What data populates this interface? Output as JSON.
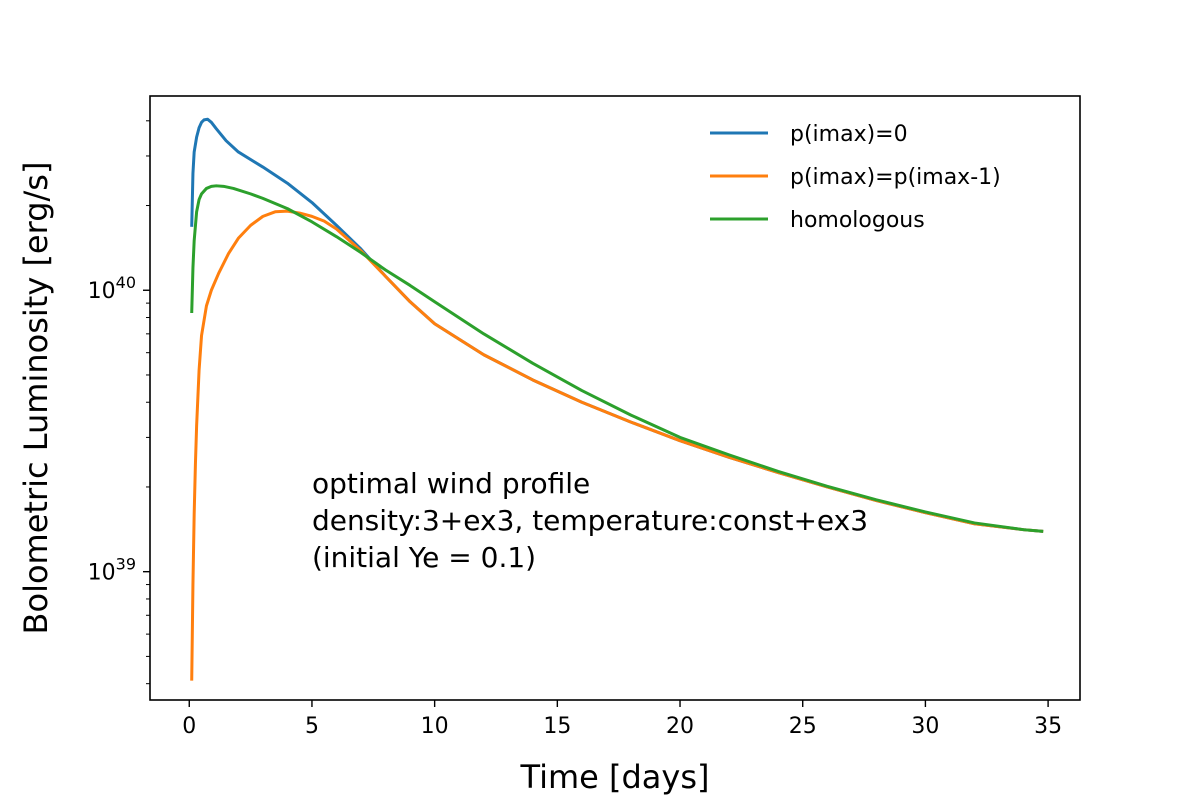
{
  "chart_data": {
    "type": "line",
    "title": "",
    "xlabel": "Time [days]",
    "ylabel": "Bolometric Luminosity [erg/s]",
    "xlim": [
      -1.6,
      36.3
    ],
    "ylim": [
      3.5e+38,
      4.9e+40
    ],
    "yscale": "log",
    "grid": false,
    "legend_position": "top-right",
    "x_ticks": [
      0,
      5,
      10,
      15,
      20,
      25,
      30,
      35
    ],
    "x_tick_labels": [
      "0",
      "5",
      "10",
      "15",
      "20",
      "25",
      "30",
      "35"
    ],
    "y_major_ticks": [
      {
        "value": 1e+39,
        "base": "10",
        "exp": "39"
      },
      {
        "value": 1e+40,
        "base": "10",
        "exp": "40"
      }
    ],
    "annotation": {
      "x": 5,
      "y": 1.9e+39,
      "lines": [
        "optimal wind profile",
        "density:3+ex3, temperature:const+ex3",
        "(initial Ye = 0.1)"
      ]
    },
    "series": [
      {
        "name": "p(imax)=0",
        "color": "#1f77b4",
        "x": [
          0.1,
          0.15,
          0.2,
          0.3,
          0.4,
          0.5,
          0.6,
          0.75,
          0.9,
          1.1,
          1.5,
          2,
          3,
          4,
          5,
          6,
          7,
          8,
          9,
          10,
          12,
          14,
          16,
          18,
          20,
          22,
          24,
          26,
          28,
          30,
          32,
          34,
          34.8
        ],
        "values": [
          1.68e+40,
          2.6e+40,
          3.1e+40,
          3.5e+40,
          3.78e+40,
          3.95e+40,
          4.03e+40,
          4.05e+40,
          3.95e+40,
          3.75e+40,
          3.4e+40,
          3.1e+40,
          2.74e+40,
          2.4e+40,
          2.05e+40,
          1.7e+40,
          1.4e+40,
          1.12e+40,
          9.1e+39,
          7.6e+39,
          5.9e+39,
          4.8e+39,
          4e+39,
          3.4e+39,
          2.92e+39,
          2.55e+39,
          2.25e+39,
          2e+39,
          1.79e+39,
          1.62e+39,
          1.48e+39,
          1.41e+39,
          1.39e+39
        ]
      },
      {
        "name": "p(imax)=p(imax-1)",
        "color": "#ff7f0e",
        "x": [
          0.1,
          0.15,
          0.2,
          0.25,
          0.3,
          0.4,
          0.5,
          0.7,
          0.9,
          1.2,
          1.6,
          2,
          2.5,
          3,
          3.5,
          4,
          4.5,
          5,
          5.5,
          6,
          7,
          8,
          9,
          10,
          12,
          14,
          16,
          18,
          20,
          22,
          24,
          26,
          28,
          30,
          32,
          34,
          34.8
        ],
        "values": [
          4.1e+38,
          9e+38,
          1.6e+39,
          2.4e+39,
          3.3e+39,
          5.2e+39,
          6.9e+39,
          8.8e+39,
          1e+40,
          1.15e+40,
          1.35e+40,
          1.53e+40,
          1.7e+40,
          1.83e+40,
          1.9e+40,
          1.91e+40,
          1.88e+40,
          1.83e+40,
          1.76e+40,
          1.65e+40,
          1.38e+40,
          1.12e+40,
          9.1e+39,
          7.6e+39,
          5.9e+39,
          4.8e+39,
          4e+39,
          3.4e+39,
          2.92e+39,
          2.55e+39,
          2.25e+39,
          2e+39,
          1.79e+39,
          1.62e+39,
          1.48e+39,
          1.41e+39,
          1.39e+39
        ]
      },
      {
        "name": "homologous",
        "color": "#2ca02c",
        "x": [
          0.1,
          0.15,
          0.2,
          0.3,
          0.4,
          0.5,
          0.7,
          0.9,
          1.1,
          1.4,
          1.8,
          2.5,
          3,
          4,
          5,
          6,
          7,
          8,
          9,
          10,
          12,
          14,
          16,
          18,
          20,
          22,
          24,
          26,
          28,
          30,
          32,
          34,
          34.8
        ],
        "values": [
          8.3e+39,
          1.2e+40,
          1.5e+40,
          1.9e+40,
          2.1e+40,
          2.2e+40,
          2.3e+40,
          2.34e+40,
          2.35e+40,
          2.34e+40,
          2.3e+40,
          2.2e+40,
          2.12e+40,
          1.95e+40,
          1.75e+40,
          1.55e+40,
          1.36e+40,
          1.18e+40,
          1.04e+40,
          9.1e+39,
          7e+39,
          5.5e+39,
          4.4e+39,
          3.6e+39,
          3e+39,
          2.6e+39,
          2.27e+39,
          2.01e+39,
          1.8e+39,
          1.63e+39,
          1.49e+39,
          1.41e+39,
          1.39e+39
        ]
      }
    ]
  }
}
